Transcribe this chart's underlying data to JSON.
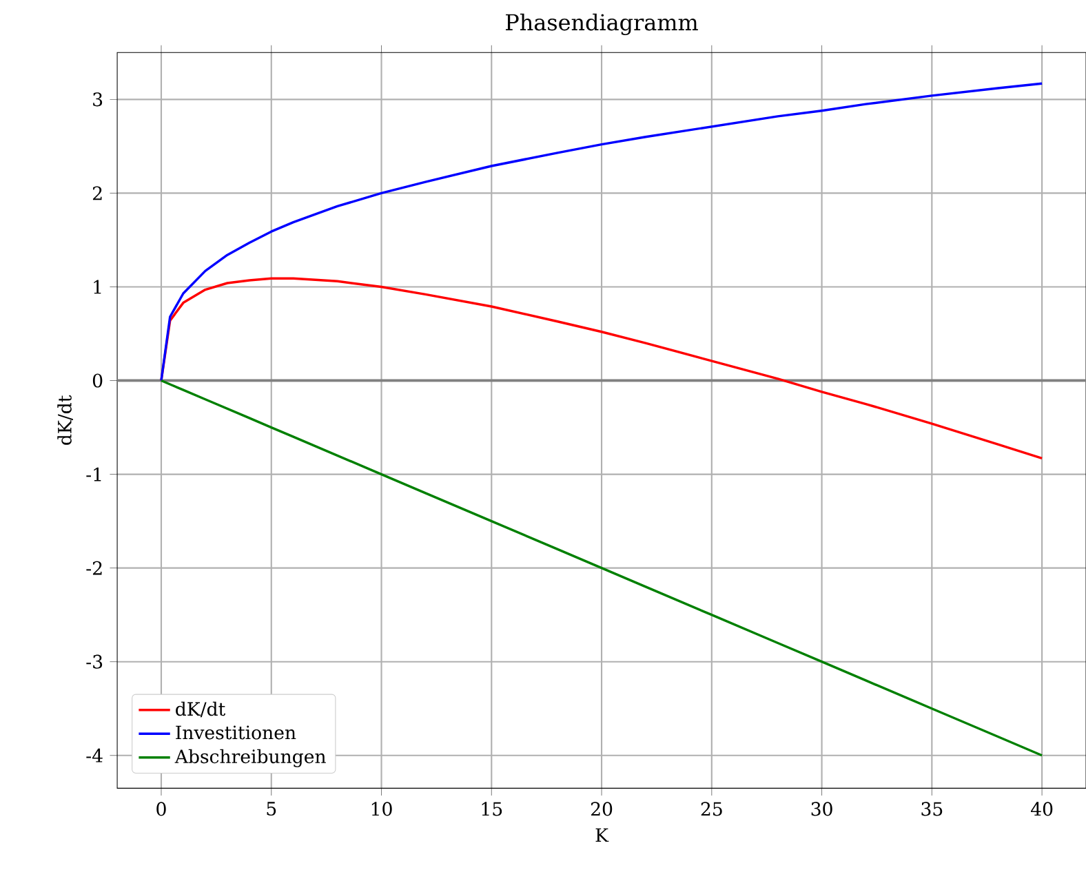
{
  "chart_data": {
    "type": "line",
    "title": "Phasendiagramm",
    "xlabel": "K",
    "ylabel": "dK/dt",
    "x": [
      0,
      0.4,
      1,
      2,
      3,
      4,
      5,
      6,
      8,
      10,
      12,
      15,
      18,
      20,
      22,
      25,
      28,
      30,
      32,
      35,
      38,
      40
    ],
    "series": [
      {
        "name": "dK/dt",
        "color": "#ff0000",
        "values": [
          0,
          0.64,
          0.83,
          0.97,
          1.04,
          1.07,
          1.09,
          1.09,
          1.06,
          1.0,
          0.92,
          0.79,
          0.63,
          0.52,
          0.4,
          0.21,
          0.02,
          -0.12,
          -0.25,
          -0.46,
          -0.68,
          -0.83
        ]
      },
      {
        "name": "Investitionen",
        "color": "#0000ff",
        "values": [
          0,
          0.68,
          0.93,
          1.17,
          1.34,
          1.47,
          1.59,
          1.69,
          1.86,
          2.0,
          2.12,
          2.29,
          2.43,
          2.52,
          2.6,
          2.71,
          2.82,
          2.88,
          2.95,
          3.04,
          3.12,
          3.17
        ]
      },
      {
        "name": "Abschreibungen",
        "color": "#008000",
        "values": [
          0,
          -0.04,
          -0.1,
          -0.2,
          -0.3,
          -0.4,
          -0.5,
          -0.6,
          -0.8,
          -1.0,
          -1.2,
          -1.5,
          -1.8,
          -2.0,
          -2.2,
          -2.5,
          -2.8,
          -3.0,
          -3.2,
          -3.5,
          -3.8,
          -4.0
        ]
      }
    ],
    "ref_lines": [
      {
        "axis": "y",
        "value": 0,
        "color": "#808080"
      }
    ],
    "xlim": [
      -2,
      42
    ],
    "ylim": [
      -4.35,
      3.5
    ],
    "xticks": [
      0,
      5,
      10,
      15,
      20,
      25,
      30,
      35,
      40
    ],
    "yticks": [
      -4,
      -3,
      -2,
      -1,
      0,
      1,
      2,
      3
    ],
    "grid": true,
    "legend": "bottom left",
    "marker": "none",
    "line_style": "solid"
  }
}
